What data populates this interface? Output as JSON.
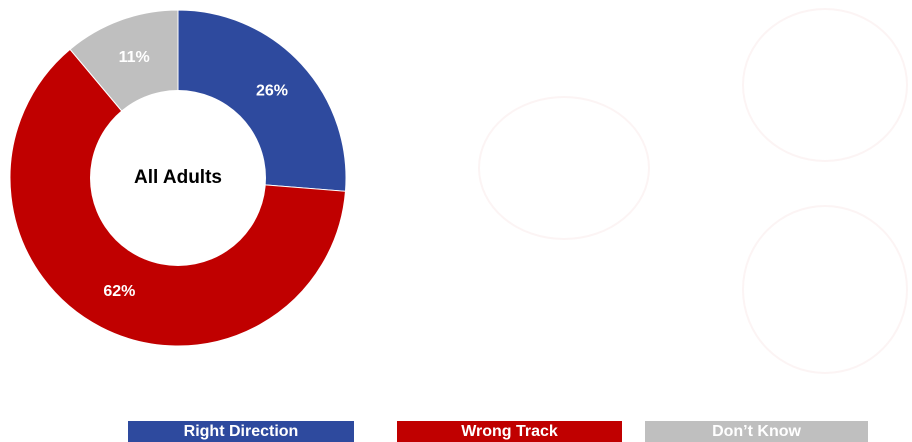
{
  "chart_data": {
    "type": "pie",
    "title": "All Adults",
    "slices": [
      {
        "label": "Right Direction",
        "value": 26,
        "display": "26%",
        "color": "#2E4A9E"
      },
      {
        "label": "Wrong Track",
        "value": 62,
        "display": "62%",
        "color": "#C00000"
      },
      {
        "label": "Don't Know",
        "value": 11,
        "display": "11%",
        "color": "#BFBFBF"
      }
    ],
    "legend": {
      "position": "bottom",
      "items": [
        "Right Direction",
        "Wrong Track",
        "Don’t Know"
      ]
    }
  }
}
